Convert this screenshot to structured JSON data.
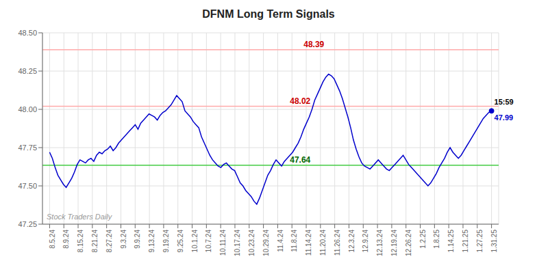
{
  "chart_data": {
    "type": "line",
    "title": "DFNM Long Term Signals",
    "color": "#0000cc",
    "grid": true,
    "xlim": [
      -0.5,
      31.5
    ],
    "xticks": [
      {
        "value": 0,
        "label": "8.5.24"
      },
      {
        "value": 1,
        "label": "8.9.24"
      },
      {
        "value": 2,
        "label": "8.15.24"
      },
      {
        "value": 3,
        "label": "8.21.24"
      },
      {
        "value": 4,
        "label": "8.27.24"
      },
      {
        "value": 5,
        "label": "9.3.24"
      },
      {
        "value": 6,
        "label": "9.9.24"
      },
      {
        "value": 7,
        "label": "9.13.24"
      },
      {
        "value": 8,
        "label": "9.19.24"
      },
      {
        "value": 9,
        "label": "9.25.24"
      },
      {
        "value": 10,
        "label": "10.1.24"
      },
      {
        "value": 11,
        "label": "10.7.24"
      },
      {
        "value": 12,
        "label": "10.11.24"
      },
      {
        "value": 13,
        "label": "10.17.24"
      },
      {
        "value": 14,
        "label": "10.23.24"
      },
      {
        "value": 15,
        "label": "10.29.24"
      },
      {
        "value": 16,
        "label": "11.4.24"
      },
      {
        "value": 17,
        "label": "11.8.24"
      },
      {
        "value": 18,
        "label": "11.14.24"
      },
      {
        "value": 19,
        "label": "11.20.24"
      },
      {
        "value": 20,
        "label": "11.26.24"
      },
      {
        "value": 21,
        "label": "12.3.24"
      },
      {
        "value": 22,
        "label": "12.9.24"
      },
      {
        "value": 23,
        "label": "12.13.24"
      },
      {
        "value": 24,
        "label": "12.19.24"
      },
      {
        "value": 25,
        "label": "12.26.24"
      },
      {
        "value": 26,
        "label": "1.2.25"
      },
      {
        "value": 27,
        "label": "1.8.25"
      },
      {
        "value": 28,
        "label": "1.14.25"
      },
      {
        "value": 29,
        "label": "1.21.25"
      },
      {
        "value": 30,
        "label": "1.27.25"
      },
      {
        "value": 31,
        "label": "1.31.25"
      }
    ],
    "ylim": [
      47.25,
      48.5
    ],
    "yticks": [
      47.25,
      {
        "value": 47.5,
        "label": "47.50"
      },
      47.75,
      {
        "value": 48.0,
        "label": "48.00"
      },
      48.25,
      {
        "value": 48.5,
        "label": "48.50"
      }
    ],
    "x": [
      0,
      0.19375,
      0.3875,
      0.58125,
      0.775,
      0.96875,
      1.1625,
      1.35625,
      1.55,
      1.74375,
      1.9375,
      2.13125,
      2.325,
      2.51875,
      2.7125,
      2.90625,
      3.1,
      3.29375,
      3.4875,
      3.68125,
      3.875,
      4.06875,
      4.2625,
      4.45625,
      4.65,
      4.84375,
      5.0375,
      5.23125,
      5.425,
      5.61875,
      5.8125,
      6.00625,
      6.2,
      6.39375,
      6.5875,
      6.78125,
      6.975,
      7.16875,
      7.3625,
      7.55625,
      7.75,
      7.94375,
      8.1375,
      8.33125,
      8.525,
      8.71875,
      8.9125,
      9.10625,
      9.3,
      9.49375,
      9.6875,
      9.88125,
      10.075,
      10.26875,
      10.4625,
      10.65625,
      10.85,
      11.04375,
      11.2375,
      11.43125,
      11.625,
      11.81875,
      12.0125,
      12.20625,
      12.4,
      12.59375,
      12.7875,
      12.98125,
      13.175,
      13.36875,
      13.5625,
      13.75625,
      13.95,
      14.14375,
      14.3375,
      14.53125,
      14.725,
      14.91875,
      15.1125,
      15.30625,
      15.5,
      15.69375,
      15.8875,
      16.08125,
      16.275,
      16.46875,
      16.6625,
      16.85625,
      17.05,
      17.24375,
      17.4375,
      17.63125,
      17.825,
      18.01875,
      18.2125,
      18.40625,
      18.6,
      18.79375,
      18.9875,
      19.18125,
      19.375,
      19.56875,
      19.7625,
      19.95625,
      20.15,
      20.34375,
      20.5375,
      20.73125,
      20.925,
      21.11875,
      21.3125,
      21.50625,
      21.7,
      21.89375,
      22.0875,
      22.28125,
      22.475,
      22.66875,
      22.8625,
      23.05625,
      23.25,
      23.44375,
      23.6375,
      23.83125,
      24.025,
      24.21875,
      24.4125,
      24.60625,
      24.8,
      24.99375,
      25.1875,
      25.38125,
      25.575,
      25.76875,
      25.9625,
      26.15625,
      26.35,
      26.54375,
      26.7375,
      26.93125,
      27.125,
      27.31875,
      27.5125,
      27.70625,
      27.9,
      28.09375,
      28.2875,
      28.48125,
      28.675,
      28.86875,
      29.0625,
      29.25625,
      29.45,
      29.64375,
      29.8375,
      30.03125,
      30.225,
      30.41875,
      30.6125,
      30.80625,
      31
    ],
    "values": [
      47.72,
      47.68,
      47.62,
      47.57,
      47.54,
      47.51,
      47.49,
      47.52,
      47.55,
      47.59,
      47.64,
      47.67,
      47.66,
      47.65,
      47.67,
      47.68,
      47.66,
      47.7,
      47.72,
      47.71,
      47.73,
      47.74,
      47.76,
      47.73,
      47.75,
      47.78,
      47.8,
      47.82,
      47.84,
      47.86,
      47.88,
      47.9,
      47.87,
      47.91,
      47.93,
      47.95,
      47.97,
      47.96,
      47.95,
      47.93,
      47.96,
      47.98,
      47.99,
      48.01,
      48.03,
      48.06,
      48.09,
      48.07,
      48.05,
      47.99,
      47.97,
      47.95,
      47.92,
      47.9,
      47.88,
      47.82,
      47.78,
      47.74,
      47.7,
      47.67,
      47.65,
      47.63,
      47.62,
      47.64,
      47.65,
      47.63,
      47.61,
      47.6,
      47.56,
      47.52,
      47.5,
      47.47,
      47.45,
      47.43,
      47.4,
      47.38,
      47.42,
      47.47,
      47.52,
      47.57,
      47.6,
      47.64,
      47.67,
      47.65,
      47.63,
      47.66,
      47.68,
      47.7,
      47.72,
      47.75,
      47.78,
      47.82,
      47.87,
      47.91,
      47.95,
      48.0,
      48.06,
      48.1,
      48.14,
      48.18,
      48.21,
      48.23,
      48.22,
      48.2,
      48.16,
      48.12,
      48.07,
      48.01,
      47.95,
      47.88,
      47.8,
      47.74,
      47.69,
      47.65,
      47.63,
      47.62,
      47.61,
      47.63,
      47.65,
      47.67,
      47.65,
      47.63,
      47.61,
      47.6,
      47.62,
      47.64,
      47.66,
      47.68,
      47.7,
      47.67,
      47.64,
      47.62,
      47.6,
      47.58,
      47.56,
      47.54,
      47.52,
      47.5,
      47.52,
      47.55,
      47.58,
      47.62,
      47.65,
      47.68,
      47.72,
      47.75,
      47.72,
      47.7,
      47.68,
      47.7,
      47.73,
      47.76,
      47.79,
      47.82,
      47.85,
      47.88,
      47.91,
      47.94,
      47.96,
      47.98,
      47.99
    ],
    "hlines": [
      {
        "value": 48.39,
        "color": "#ffaaaa",
        "label": "48.39",
        "label_color": "#cc0000"
      },
      {
        "value": 48.02,
        "color": "#ffaaaa",
        "label": "48.02",
        "label_color": "#cc0000"
      },
      {
        "value": 47.635,
        "color": "#44cc44",
        "label": "47.64",
        "label_color": "#006600"
      }
    ],
    "annotations": [
      {
        "text": "15:59",
        "color": "#000000"
      },
      {
        "text": "47.99",
        "color": "#0000cc"
      },
      {
        "text": "Stock Traders Daily",
        "color": "#999999"
      }
    ]
  }
}
